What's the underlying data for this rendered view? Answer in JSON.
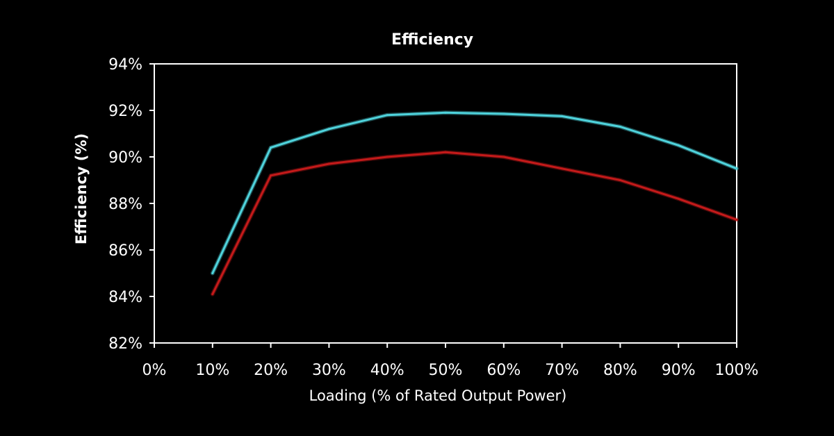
{
  "chart_data": {
    "type": "line",
    "title": "Efficiency",
    "xlabel": "Loading (% of Rated Output Power)",
    "ylabel": "Efficiency (%)",
    "x_ticks": [
      "0%",
      "10%",
      "20%",
      "30%",
      "40%",
      "50%",
      "60%",
      "70%",
      "80%",
      "90%",
      "100%"
    ],
    "y_ticks": [
      "82%",
      "84%",
      "86%",
      "88%",
      "90%",
      "92%",
      "94%"
    ],
    "xlim": [
      0,
      100
    ],
    "ylim": [
      82,
      94
    ],
    "grid": false,
    "legend": "none",
    "x": [
      10,
      20,
      30,
      40,
      50,
      60,
      70,
      80,
      90,
      100
    ],
    "series": [
      {
        "color": "#4fd3dc",
        "values": [
          85.0,
          90.4,
          91.2,
          91.8,
          91.9,
          91.85,
          91.75,
          91.3,
          90.5,
          89.5
        ]
      },
      {
        "color": "#c41a1a",
        "values": [
          84.1,
          89.2,
          89.7,
          90.0,
          90.2,
          90.0,
          89.5,
          89.0,
          88.2,
          87.3
        ]
      }
    ],
    "axis_color": "#ffffff"
  }
}
